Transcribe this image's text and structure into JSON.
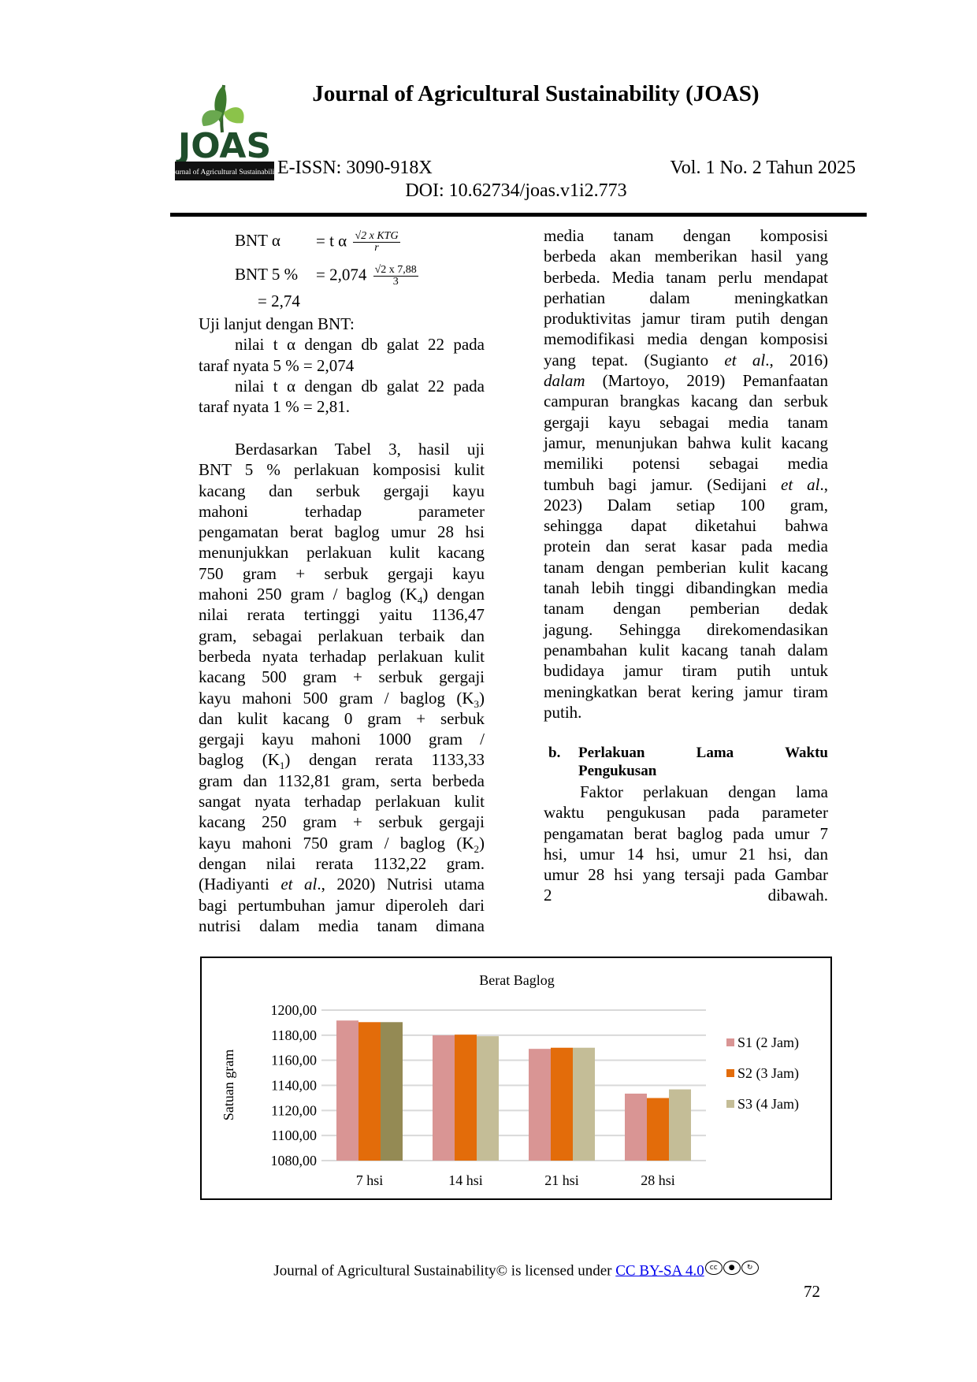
{
  "header": {
    "journal_title": "Journal of Agricultural Sustainability (JOAS)",
    "logo_text": "JOAS",
    "logo_banner": "Journal of Agricultural Sustainability",
    "issn": "E-ISSN: 3090-918X",
    "volume": "Vol. 1 No. 2 Tahun 2025",
    "doi": "DOI: 10.62734/joas.v1i2.773"
  },
  "formula": {
    "line1_label": "BNT α",
    "line1_eq": "= t α",
    "line1_num": "√2 x KTG",
    "line1_den": "r",
    "line2_label": "BNT 5 %",
    "line2_eq": "= 2,074",
    "line2_num": "√2 x 7,88",
    "line2_den": "3",
    "line3": "= 2,74"
  },
  "left_intro": [
    [
      {
        "t": "Uji lanjut dengan BNT:"
      }
    ],
    [
      {
        "t": "nilai t α dengan db galat 22 pada"
      }
    ],
    [
      {
        "t": "taraf nyata 5 % = 2,074"
      }
    ],
    [
      {
        "t": "nilai t α dengan db galat 22 pada"
      }
    ],
    [
      {
        "t": "taraf nyata 1 % = 2,81."
      }
    ]
  ],
  "left_paragraph": [
    [
      {
        "t": "Berdasarkan Tabel 3, hasil uji"
      }
    ],
    [
      {
        "t": "BNT 5 % perlakuan komposisi kulit"
      }
    ],
    [
      {
        "t": "kacang dan serbuk gergaji kayu"
      }
    ],
    [
      {
        "t": "mahoni terhadap parameter"
      }
    ],
    [
      {
        "t": "pengamatan berat baglog umur 28 hsi"
      }
    ],
    [
      {
        "t": "menunjukkan perlakuan kulit kacang"
      }
    ],
    [
      {
        "t": "750 gram + serbuk gergaji kayu"
      }
    ],
    [
      {
        "t": "mahoni 250 gram / baglog (K"
      },
      {
        "t": "4",
        "sub": true
      },
      {
        "t": ") dengan"
      }
    ],
    [
      {
        "t": "nilai rerata tertinggi yaitu 1136,47"
      }
    ],
    [
      {
        "t": "gram, sebagai perlakuan terbaik dan"
      }
    ],
    [
      {
        "t": "berbeda nyata terhadap perlakuan kulit"
      }
    ],
    [
      {
        "t": "kacang 500 gram + serbuk gergaji"
      }
    ],
    [
      {
        "t": "kayu mahoni 500 gram / baglog (K"
      },
      {
        "t": "3",
        "sub": true
      },
      {
        "t": ")"
      }
    ],
    [
      {
        "t": "dan kulit kacang 0 gram + serbuk"
      }
    ],
    [
      {
        "t": "gergaji kayu mahoni 1000 gram /"
      }
    ],
    [
      {
        "t": "baglog (K"
      },
      {
        "t": "1",
        "sub": true
      },
      {
        "t": ") dengan rerata 1133,33"
      }
    ],
    [
      {
        "t": "gram dan 1132,81 gram, serta berbeda"
      }
    ],
    [
      {
        "t": "sangat nyata terhadap perlakuan kulit"
      }
    ],
    [
      {
        "t": "kacang 250 gram + serbuk gergaji"
      }
    ],
    [
      {
        "t": "kayu mahoni 750 gram / baglog (K"
      },
      {
        "t": "2",
        "sub": true
      },
      {
        "t": ")"
      }
    ],
    [
      {
        "t": "dengan nilai rerata 1132,22 gram."
      }
    ],
    [
      {
        "t": "(Hadiyanti "
      },
      {
        "t": "et al",
        "i": true
      },
      {
        "t": "., 2020) Nutrisi utama"
      }
    ],
    [
      {
        "t": "bagi pertumbuhan jamur diperoleh dari"
      }
    ],
    [
      {
        "t": "nutrisi dalam media tanam dimana"
      }
    ]
  ],
  "right_paragraph": [
    [
      {
        "t": "media tanam dengan komposisi"
      }
    ],
    [
      {
        "t": "berbeda akan memberikan hasil yang"
      }
    ],
    [
      {
        "t": "berbeda. Media tanam perlu mendapat"
      }
    ],
    [
      {
        "t": "perhatian dalam meningkatkan"
      }
    ],
    [
      {
        "t": "produktivitas jamur tiram putih dengan"
      }
    ],
    [
      {
        "t": "memodifikasi media dengan komposisi"
      }
    ],
    [
      {
        "t": "yang tepat. (Sugianto "
      },
      {
        "t": "et al",
        "i": true
      },
      {
        "t": "., 2016)"
      }
    ],
    [
      {
        "t": "dalam",
        "i": true
      },
      {
        "t": " (Martoyo, 2019) Pemanfaatan"
      }
    ],
    [
      {
        "t": "campuran brangkas kacang dan serbuk"
      }
    ],
    [
      {
        "t": "gergaji kayu sebagai media tanam"
      }
    ],
    [
      {
        "t": "jamur, menunjukan bahwa kulit kacang"
      }
    ],
    [
      {
        "t": "memiliki potensi sebagai media"
      }
    ],
    [
      {
        "t": "tumbuh bagi jamur. (Sedijani "
      },
      {
        "t": "et al",
        "i": true
      },
      {
        "t": ".,"
      }
    ],
    [
      {
        "t": "2023) Dalam setiap 100 gram,"
      }
    ],
    [
      {
        "t": "sehingga dapat diketahui bahwa"
      }
    ],
    [
      {
        "t": "protein dan serat kasar pada media"
      }
    ],
    [
      {
        "t": "tanam dengan pemberian kulit kacang"
      }
    ],
    [
      {
        "t": "tanah lebih tinggi dibandingkan media"
      }
    ],
    [
      {
        "t": "tanam dengan pemberian dedak"
      }
    ],
    [
      {
        "t": "jagung. Sehingga direkomendasikan"
      }
    ],
    [
      {
        "t": "penambahan kulit kacang tanah dalam"
      }
    ],
    [
      {
        "t": "budidaya jamur tiram putih untuk"
      }
    ],
    [
      {
        "t": "meningkatkan berat kering jamur tiram"
      }
    ],
    [
      {
        "t": "putih."
      }
    ]
  ],
  "section_b": {
    "number": "b.",
    "heading_line1": "Perlakuan Lama Waktu",
    "heading_line2": "Pengukusan",
    "paragraph": [
      [
        {
          "t": "Faktor perlakuan dengan lama"
        }
      ],
      [
        {
          "t": "waktu pengukusan pada parameter"
        }
      ],
      [
        {
          "t": "pengamatan berat baglog pada umur 7"
        }
      ],
      [
        {
          "t": "hsi, umur 14 hsi, umur 21 hsi, dan"
        }
      ],
      [
        {
          "t": "umur 28 hsi yang tersaji pada Gambar"
        }
      ],
      [
        {
          "t": "2 dibawah."
        }
      ]
    ]
  },
  "chart_data": {
    "type": "bar",
    "title": "Berat Baglog",
    "ylabel": "Satuan gram",
    "xlabel": "",
    "categories": [
      "7 hsi",
      "14 hsi",
      "21 hsi",
      "28 hsi"
    ],
    "ylim": [
      1080,
      1200
    ],
    "yticks": [
      "1080,00",
      "1100,00",
      "1120,00",
      "1140,00",
      "1160,00",
      "1180,00",
      "1200,00"
    ],
    "ytick_values": [
      1080,
      1100,
      1120,
      1140,
      1160,
      1180,
      1200
    ],
    "grid": true,
    "legend_position": "right",
    "series": [
      {
        "name": "S1 (2 Jam)",
        "color": "#D99594",
        "values": [
          1191.7,
          1179.9,
          1169.1,
          1133.4
        ]
      },
      {
        "name": "S2 (3 Jam)",
        "color": "#E36C0A",
        "values": [
          1190.4,
          1180.4,
          1170.0,
          1129.9
        ]
      },
      {
        "name": "S3 (4 Jam)",
        "color": "#C4BD97",
        "values": [
          1190.4,
          1179.2,
          1170.0,
          1136.8
        ],
        "point_colors": [
          "#948A54",
          null,
          null,
          null
        ]
      }
    ]
  },
  "footer": {
    "text": "Journal of Agricultural Sustainability© is licensed under ",
    "license_link": "CC BY-SA 4.0",
    "cc_icon_text": "cc",
    "page_number": "72"
  }
}
